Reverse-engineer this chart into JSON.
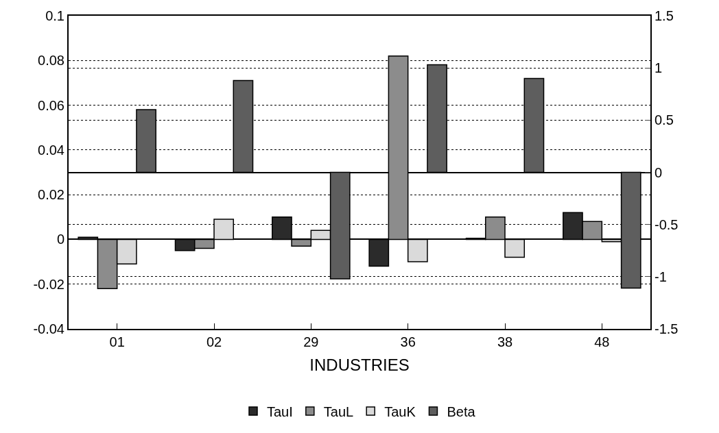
{
  "chart_data": {
    "type": "bar",
    "xlabel": "INDUSTRIES",
    "categories": [
      "01",
      "02",
      "29",
      "36",
      "38",
      "48"
    ],
    "series": [
      {
        "name": "TauI",
        "color": "#2b2b2b",
        "values": [
          0.001,
          -0.005,
          0.01,
          -0.012,
          0.0005,
          0.012
        ]
      },
      {
        "name": "TauL",
        "color": "#8c8c8c",
        "values": [
          -0.022,
          -0.004,
          -0.003,
          0.082,
          0.01,
          0.008
        ]
      },
      {
        "name": "TauK",
        "color": "#dadada",
        "values": [
          -0.011,
          0.009,
          0.004,
          -0.01,
          -0.008,
          -0.001
        ]
      },
      {
        "name": "Beta",
        "color": "#5e5e5e",
        "axis": "y2",
        "values": [
          0.6,
          0.88,
          -1.02,
          1.03,
          0.9,
          -1.11
        ]
      }
    ],
    "ylim": [
      -0.04,
      0.1
    ],
    "yticks": [
      -0.04,
      -0.02,
      0,
      0.02,
      0.04,
      0.06,
      0.08,
      0.1
    ],
    "y2lim": [
      -1.5,
      1.5
    ],
    "y2ticks": [
      -1.5,
      -1,
      -0.5,
      0,
      0.5,
      1,
      1.5
    ],
    "grid": "y",
    "line_style": "dotted",
    "legend": "bottom"
  }
}
